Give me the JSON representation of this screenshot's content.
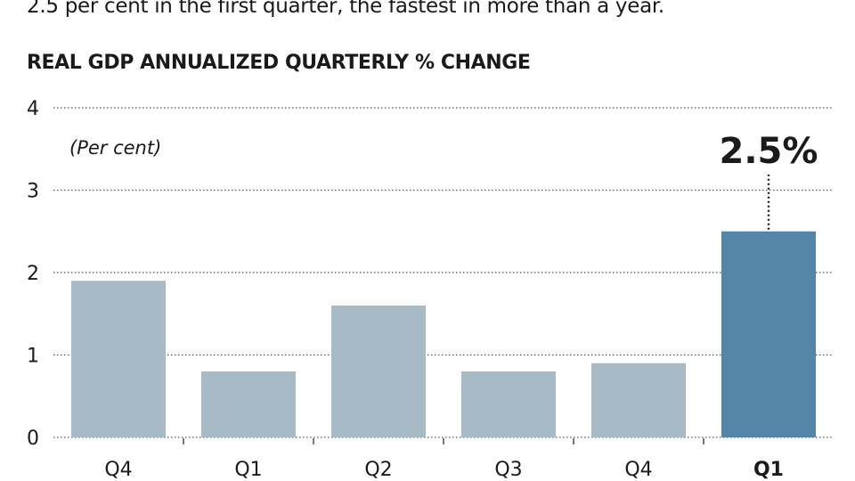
{
  "intro_text": "2.5 per cent in the first quarter, the fastest in more than a year.",
  "chart_data": {
    "type": "bar",
    "title": "REAL GDP ANNUALIZED QUARTERLY % CHANGE",
    "unit_note": "(Per cent)",
    "categories": [
      "Q4",
      "Q1",
      "Q2",
      "Q3",
      "Q4",
      "Q1"
    ],
    "values": [
      1.9,
      0.8,
      1.6,
      0.8,
      0.9,
      2.5
    ],
    "highlight_index": 5,
    "highlight_label": "2.5%",
    "ylim": [
      0,
      4
    ],
    "yticks": [
      "0",
      "1",
      "2",
      "3",
      "4"
    ],
    "grid": true,
    "colors": {
      "bar": "#a7bbc6",
      "highlight": "#5386a6",
      "grid": "#555555"
    }
  }
}
